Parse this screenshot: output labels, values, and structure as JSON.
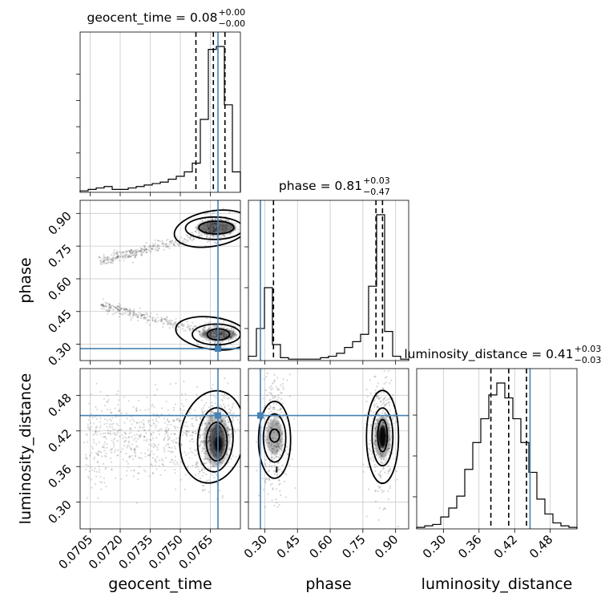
{
  "accent_color": "#4682b4",
  "chart_data": {
    "type": "corner",
    "parameters": [
      "geocent_time",
      "phase",
      "luminosity_distance"
    ],
    "truths": {
      "geocent_time": 0.07688,
      "phase": 0.28,
      "luminosity_distance": 0.446
    },
    "titles": [
      {
        "param": "geocent_time",
        "median": "0.08",
        "plus": "+0.00",
        "minus": "−0.00"
      },
      {
        "param": "phase",
        "median": "0.81",
        "plus": "+0.03",
        "minus": "−0.47"
      },
      {
        "param": "luminosity_distance",
        "median": "0.41",
        "plus": "+0.03",
        "minus": "−0.03"
      }
    ],
    "axes": {
      "geocent_time": {
        "range": [
          0.07,
          0.078
        ],
        "ticks": [
          "0.0705",
          "0.0720",
          "0.0735",
          "0.0750",
          "0.0765"
        ]
      },
      "phase": {
        "range": [
          0.225,
          0.96
        ],
        "ticks": [
          "0.30",
          "0.45",
          "0.60",
          "0.75",
          "0.90"
        ]
      },
      "luminosity_distance": {
        "range": [
          0.255,
          0.525
        ],
        "ticks": [
          "0.30",
          "0.36",
          "0.42",
          "0.48"
        ]
      }
    },
    "histograms": {
      "geocent_time": {
        "edges": [
          0.07,
          0.0704,
          0.0708,
          0.0712,
          0.0716,
          0.072,
          0.0724,
          0.0728,
          0.0732,
          0.0736,
          0.074,
          0.0744,
          0.0748,
          0.0752,
          0.0756,
          0.076,
          0.0764,
          0.0768,
          0.0772,
          0.0776,
          0.078
        ],
        "counts": [
          1,
          2,
          3,
          4,
          2,
          2,
          3,
          4,
          5,
          6,
          7,
          9,
          11,
          14,
          20,
          50,
          98,
          100,
          60,
          14
        ],
        "quantiles": [
          0.07578,
          0.07665,
          0.07723
        ]
      },
      "phase": {
        "edges": [
          0.225,
          0.2617,
          0.2985,
          0.3352,
          0.372,
          0.4088,
          0.4455,
          0.4822,
          0.519,
          0.5558,
          0.5925,
          0.6292,
          0.666,
          0.7028,
          0.7395,
          0.7762,
          0.813,
          0.8497,
          0.8865,
          0.9232,
          0.96
        ],
        "counts": [
          3,
          22,
          50,
          11,
          2,
          1,
          1,
          1,
          1,
          2,
          3,
          5,
          9,
          13,
          18,
          51,
          100,
          20,
          3,
          1
        ],
        "quantiles": [
          0.34,
          0.81,
          0.84
        ]
      },
      "luminosity_distance": {
        "edges": [
          0.255,
          0.2685,
          0.282,
          0.2955,
          0.309,
          0.3225,
          0.336,
          0.3495,
          0.363,
          0.3765,
          0.39,
          0.4035,
          0.417,
          0.4305,
          0.444,
          0.4575,
          0.471,
          0.4845,
          0.498,
          0.5115,
          0.525
        ],
        "counts": [
          1,
          2,
          3,
          8,
          14,
          22,
          40,
          58,
          74,
          90,
          98,
          88,
          74,
          58,
          38,
          20,
          10,
          4,
          2,
          1
        ],
        "quantiles": [
          0.38,
          0.41,
          0.44
        ]
      }
    },
    "grid": true,
    "ylabel_hidden_on_diagonal": true
  },
  "labels": {
    "geocent_time": "geocent_time",
    "phase": "phase",
    "luminosity_distance": "luminosity_distance"
  }
}
